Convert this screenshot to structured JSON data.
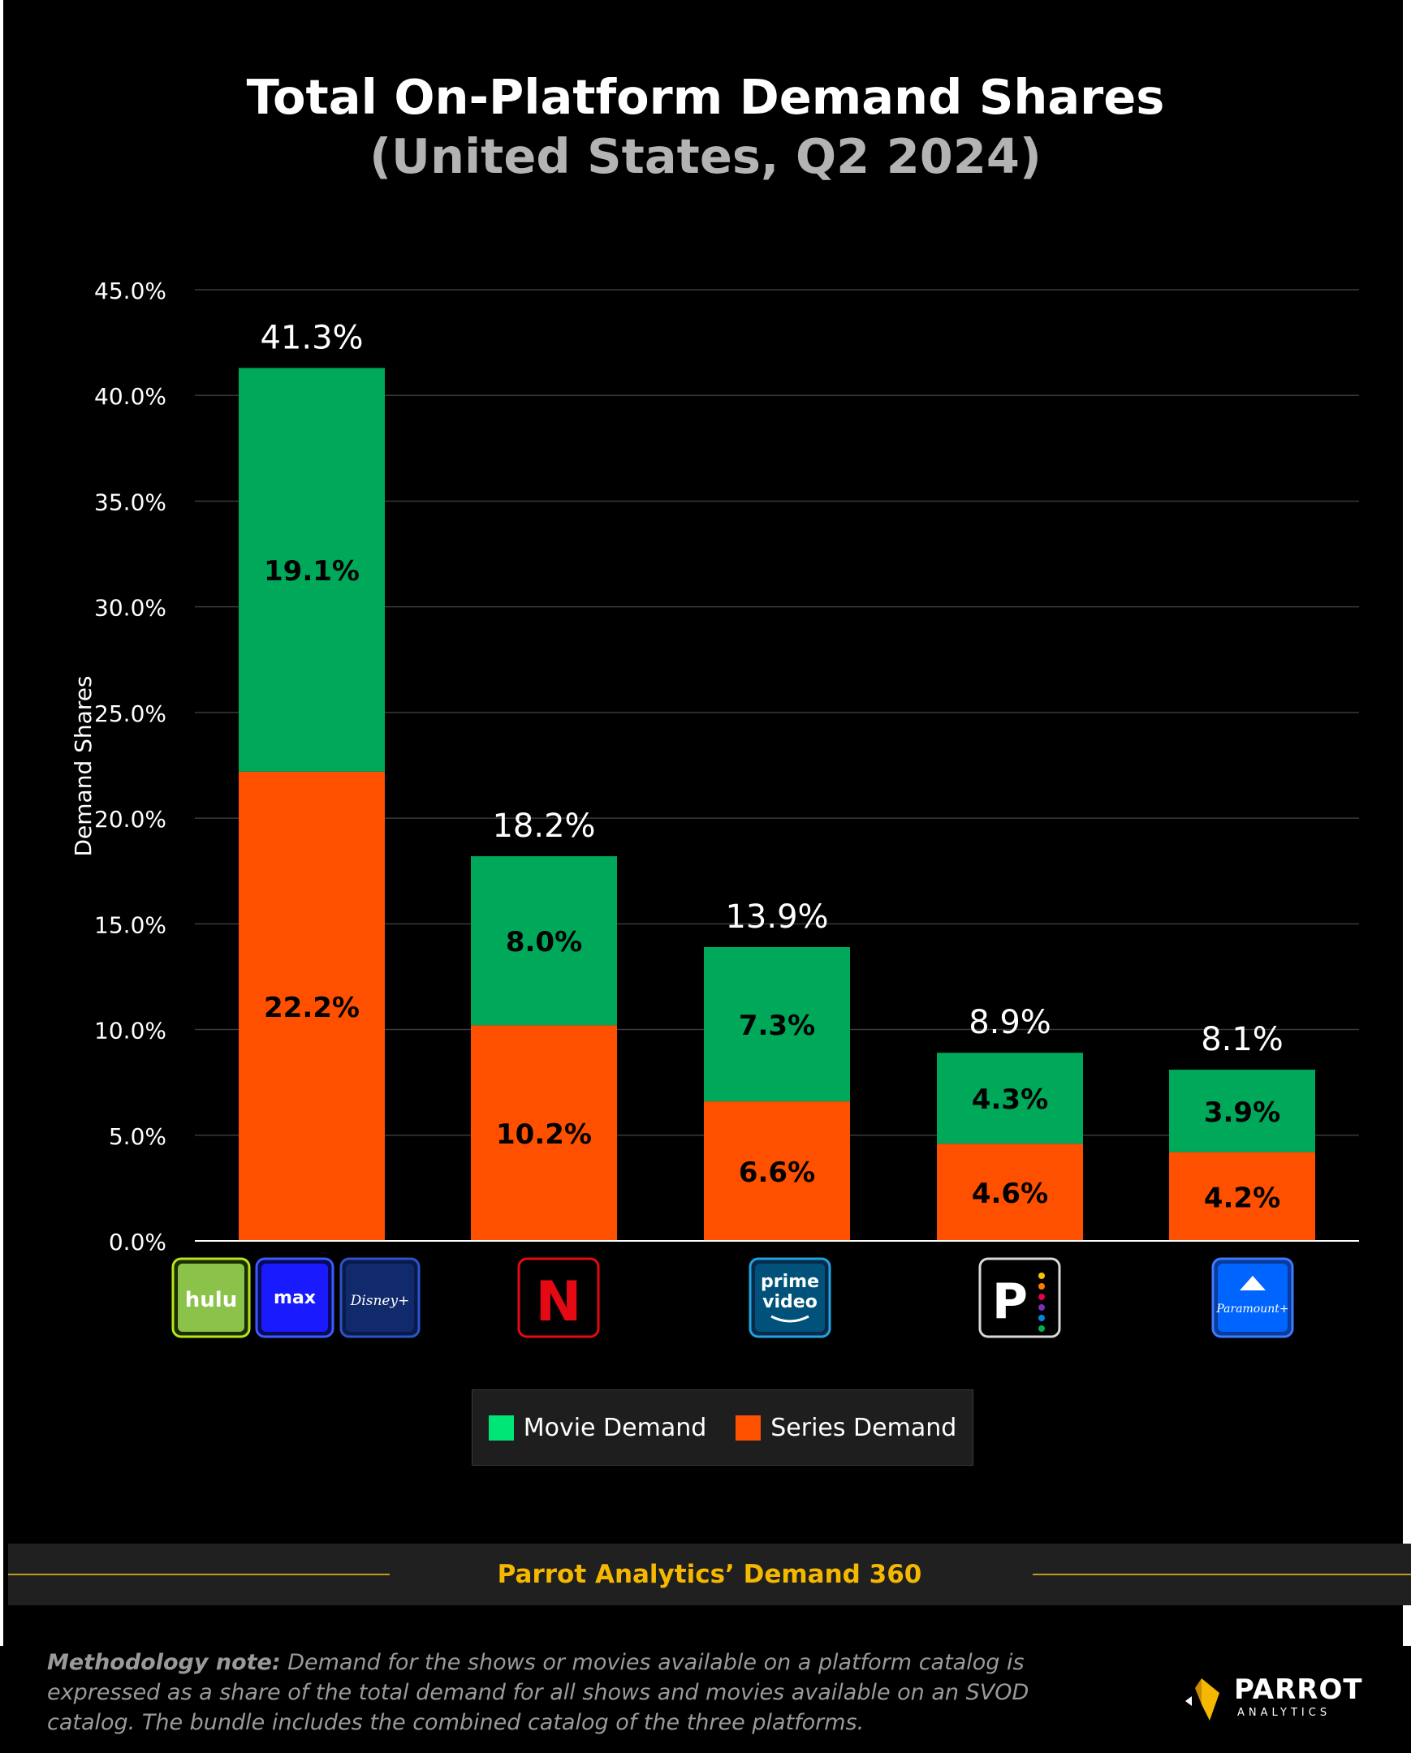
{
  "chart_data": {
    "type": "bar",
    "stacked": true,
    "title": "Total On-Platform Demand Shares",
    "subtitle": "(United States, Q2 2024)",
    "ylabel": "Demand Shares",
    "ylim": [
      0,
      45
    ],
    "yticks": [
      "0.0%",
      "5.0%",
      "10.0%",
      "15.0%",
      "20.0%",
      "25.0%",
      "30.0%",
      "35.0%",
      "40.0%",
      "45.0%"
    ],
    "grid": true,
    "legend_position": "bottom",
    "categories": [
      "Hulu + Max + Disney+",
      "Netflix",
      "Prime Video",
      "Peacock",
      "Paramount+"
    ],
    "totals": [
      41.3,
      18.2,
      13.9,
      8.9,
      8.1
    ],
    "total_labels": [
      "41.3%",
      "18.2%",
      "13.9%",
      "8.9%",
      "8.1%"
    ],
    "series": [
      {
        "name": "Series Demand",
        "color": "#ff5000",
        "values": [
          22.2,
          10.2,
          6.6,
          4.6,
          4.2
        ],
        "labels": [
          "22.2%",
          "10.2%",
          "6.6%",
          "4.6%",
          "4.2%"
        ]
      },
      {
        "name": "Movie Demand",
        "color": "#00a859",
        "values": [
          19.1,
          8.0,
          7.3,
          4.3,
          3.9
        ],
        "labels": [
          "19.1%",
          "8.0%",
          "7.3%",
          "4.3%",
          "3.9%"
        ]
      }
    ]
  },
  "logos": {
    "hulu": "hulu",
    "max": "max",
    "disney": "Disney+",
    "netflix": "N",
    "prime_line1": "prime",
    "prime_line2": "video",
    "peacock": "P",
    "paramount": "Paramount+"
  },
  "legend": {
    "movie_label": "Movie Demand",
    "series_label": "Series Demand",
    "movie_color": "#00e676",
    "series_color": "#ff5000"
  },
  "source": "Parrot Analytics’ Demand 360",
  "methodology": {
    "label": "Methodology note:",
    "text": " Demand for the shows or movies available on a platform catalog is expressed as a share of the total demand for all shows and movies available on an SVOD catalog. The bundle includes the combined catalog of the three platforms."
  },
  "brand": {
    "name": "PARROT",
    "sub": "ANALYTICS"
  }
}
